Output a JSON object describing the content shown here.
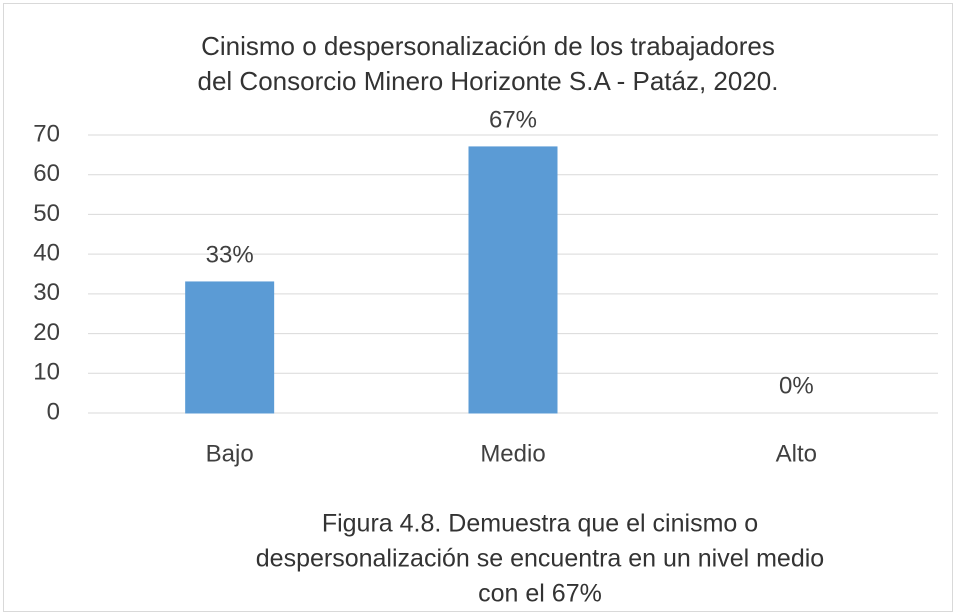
{
  "chart_data": {
    "type": "bar",
    "title": [
      "Cinismo o despersonalización de los trabajadores",
      "del Consorcio Minero Horizonte S.A - Patáz, 2020."
    ],
    "categories": [
      "Bajo",
      "Medio",
      "Alto"
    ],
    "values": [
      33,
      67,
      0
    ],
    "value_labels": [
      "33%",
      "67%",
      "0%"
    ],
    "color": "#5b9bd5",
    "ylim": [
      0,
      70
    ],
    "yticks": [
      0,
      10,
      20,
      30,
      40,
      50,
      60,
      70
    ],
    "grid": true,
    "caption": [
      "Figura 4.8. Demuestra que el cinismo o",
      "despersonalización se encuentra en un nivel medio",
      "con el 67%"
    ]
  }
}
